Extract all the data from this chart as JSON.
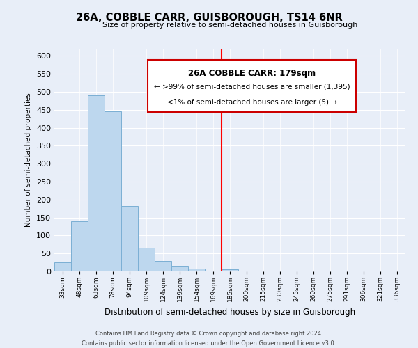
{
  "title": "26A, COBBLE CARR, GUISBOROUGH, TS14 6NR",
  "subtitle": "Size of property relative to semi-detached houses in Guisborough",
  "xlabel": "Distribution of semi-detached houses by size in Guisborough",
  "ylabel": "Number of semi-detached properties",
  "footer_line1": "Contains HM Land Registry data © Crown copyright and database right 2024.",
  "footer_line2": "Contains public sector information licensed under the Open Government Licence v3.0.",
  "bin_labels": [
    "33sqm",
    "48sqm",
    "63sqm",
    "78sqm",
    "94sqm",
    "109sqm",
    "124sqm",
    "139sqm",
    "154sqm",
    "169sqm",
    "185sqm",
    "200sqm",
    "215sqm",
    "230sqm",
    "245sqm",
    "260sqm",
    "275sqm",
    "291sqm",
    "306sqm",
    "321sqm",
    "336sqm"
  ],
  "bar_values": [
    25,
    140,
    490,
    445,
    183,
    65,
    30,
    15,
    8,
    0,
    5,
    0,
    0,
    0,
    0,
    2,
    0,
    0,
    0,
    2,
    0
  ],
  "bar_color": "#bdd7ee",
  "bar_edge_color": "#7bafd4",
  "ylim": [
    0,
    620
  ],
  "yticks": [
    0,
    50,
    100,
    150,
    200,
    250,
    300,
    350,
    400,
    450,
    500,
    550,
    600
  ],
  "property_line_x_label": "185sqm",
  "property_line_label": "26A COBBLE CARR: 179sqm",
  "annotation_line1": "← >99% of semi-detached houses are smaller (1,395)",
  "annotation_line2": "<1% of semi-detached houses are larger (5) →",
  "annotation_box_color": "#ffffff",
  "annotation_box_edge": "#cc0000",
  "bg_color": "#e8eef8"
}
